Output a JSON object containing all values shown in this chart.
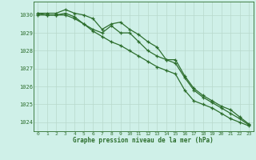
{
  "title": "Graphe pression niveau de la mer (hPa)",
  "background_color": "#cff0e8",
  "grid_color": "#b8d8cc",
  "line_color": "#2d6e2d",
  "ylim": [
    1023.5,
    1030.75
  ],
  "yticks": [
    1024,
    1025,
    1026,
    1027,
    1028,
    1029,
    1030
  ],
  "xlim": [
    -0.5,
    23.5
  ],
  "xticks": [
    0,
    1,
    2,
    3,
    4,
    5,
    6,
    7,
    8,
    9,
    10,
    11,
    12,
    13,
    14,
    15,
    16,
    17,
    18,
    19,
    20,
    21,
    22,
    23
  ],
  "series1": [
    1030.1,
    1030.1,
    1030.1,
    1030.3,
    1030.1,
    1030.0,
    1029.8,
    1029.2,
    1029.5,
    1029.6,
    1029.2,
    1028.9,
    1028.5,
    1028.2,
    1027.5,
    1027.5,
    1026.6,
    1025.9,
    1025.5,
    1025.2,
    1024.9,
    1024.7,
    1024.3,
    1023.9
  ],
  "series2": [
    1030.1,
    1030.0,
    1030.0,
    1030.1,
    1029.9,
    1029.5,
    1029.2,
    1029.0,
    1029.4,
    1029.0,
    1029.0,
    1028.5,
    1028.0,
    1027.7,
    1027.5,
    1027.3,
    1026.5,
    1025.8,
    1025.4,
    1025.1,
    1024.8,
    1024.5,
    1024.2,
    1023.85
  ],
  "series3": [
    1030.0,
    1030.0,
    1030.0,
    1030.0,
    1029.8,
    1029.5,
    1029.1,
    1028.8,
    1028.5,
    1028.3,
    1028.0,
    1027.7,
    1027.4,
    1027.1,
    1026.9,
    1026.7,
    1025.8,
    1025.2,
    1025.0,
    1024.8,
    1024.5,
    1024.2,
    1024.0,
    1023.8
  ]
}
